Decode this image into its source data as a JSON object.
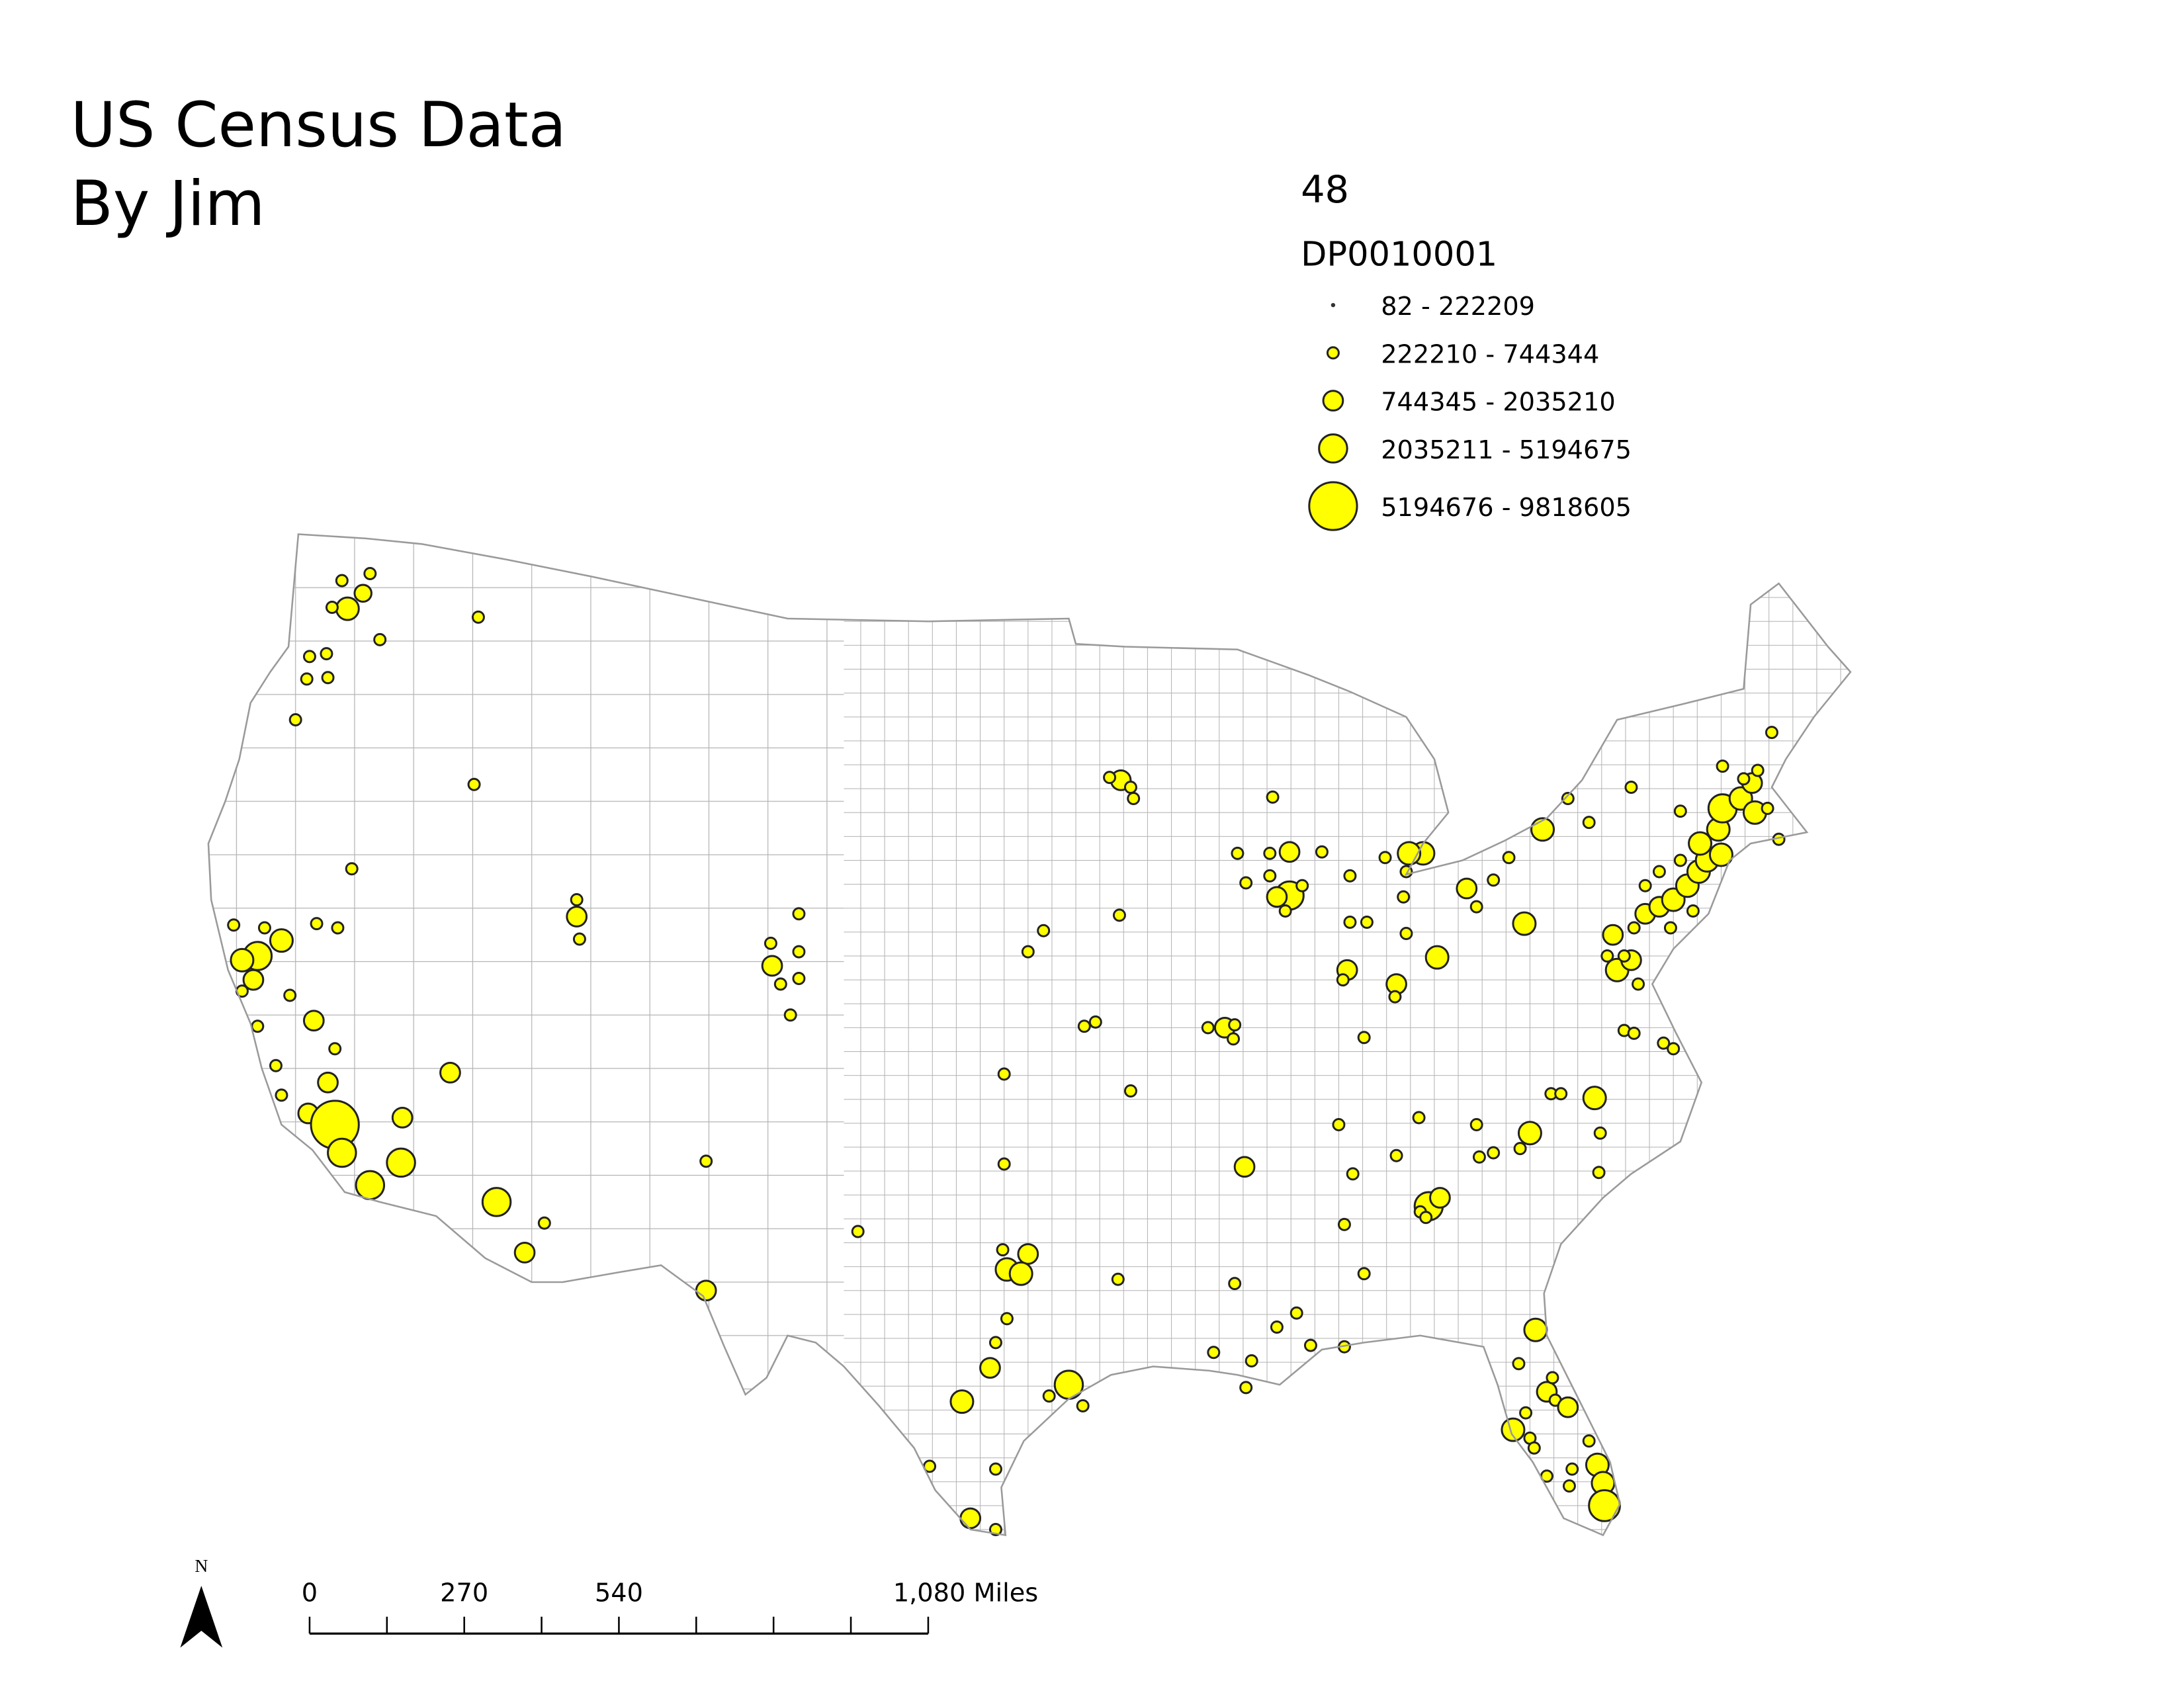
{
  "title_lines": [
    "US Census Data",
    "By Jim"
  ],
  "legend": {
    "heading": "48",
    "field": "DP0010001",
    "classes": [
      "82 - 222209",
      "222210 - 744344",
      "744345 - 2035210",
      "2035211 - 5194675",
      "5194676 - 9818605"
    ]
  },
  "scale_bar": {
    "labels": [
      "0",
      "270",
      "540",
      "1,080 Miles"
    ]
  },
  "north_arrow": "N"
}
